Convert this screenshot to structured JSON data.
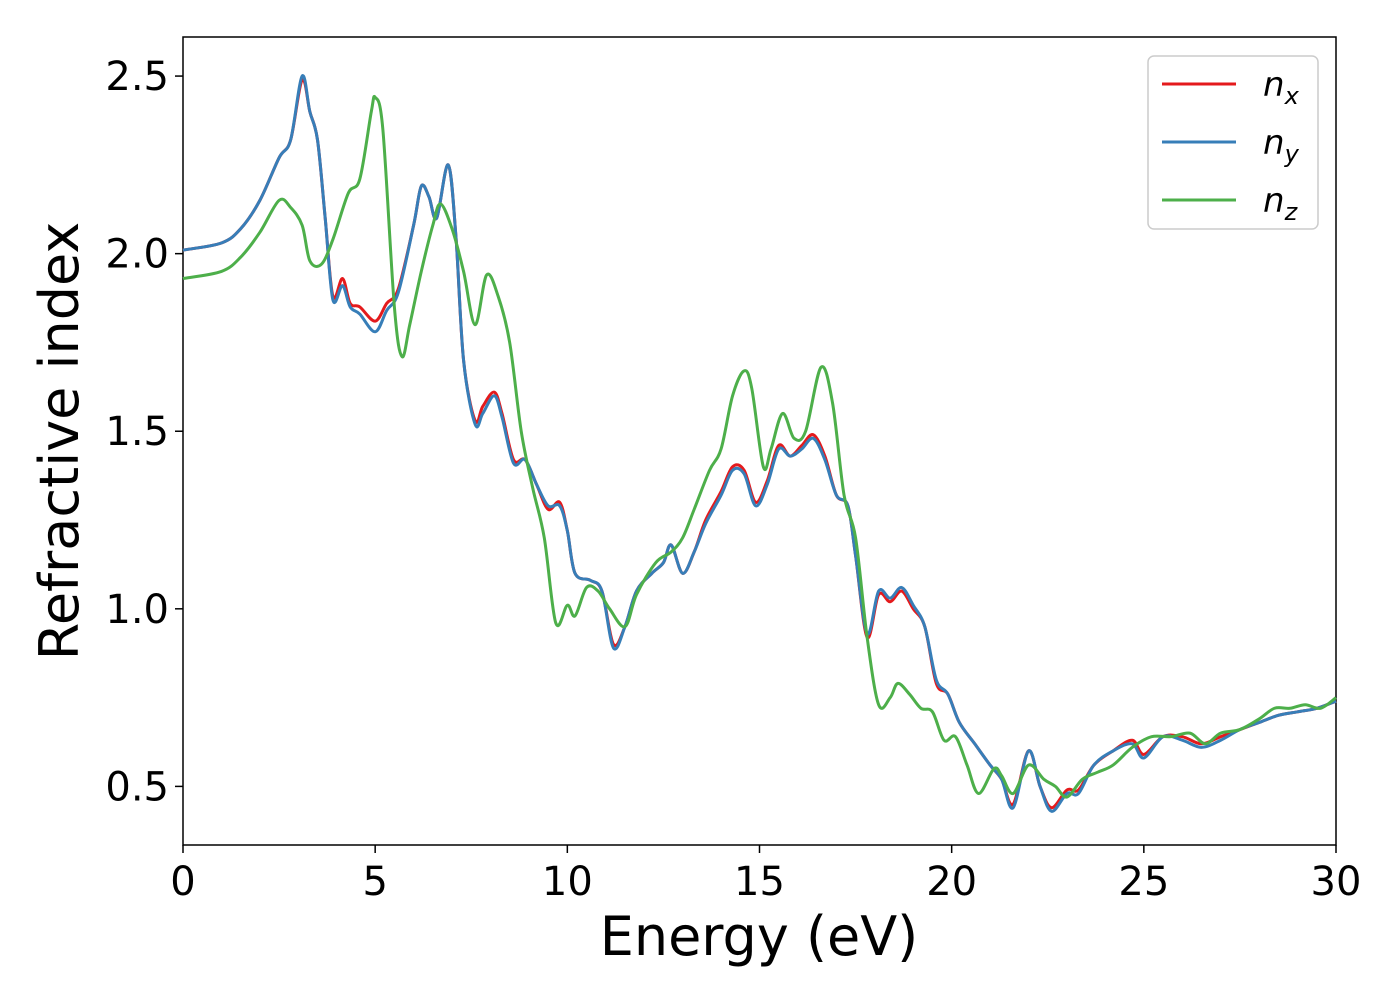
{
  "chart_data": {
    "type": "line",
    "title": "",
    "xlabel": "Energy (eV)",
    "ylabel": "Refractive index",
    "xlim": [
      0,
      30
    ],
    "ylim": [
      0.335,
      2.61
    ],
    "xticks": [
      0,
      5,
      10,
      15,
      20,
      25,
      30
    ],
    "xtick_labels": [
      "0",
      "5",
      "10",
      "15",
      "20",
      "25",
      "30"
    ],
    "yticks": [
      0.5,
      1.0,
      1.5,
      2.0,
      2.5
    ],
    "ytick_labels": [
      "0.5",
      "1.0",
      "1.5",
      "2.0",
      "2.5"
    ],
    "grid": false,
    "legend": "top-right",
    "series": [
      {
        "name": "n",
        "subscript": "x",
        "color": "#e41a1c",
        "points": [
          [
            0,
            2.01
          ],
          [
            1,
            2.03
          ],
          [
            1.5,
            2.07
          ],
          [
            2,
            2.15
          ],
          [
            2.5,
            2.27
          ],
          [
            2.8,
            2.32
          ],
          [
            3.1,
            2.49
          ],
          [
            3.3,
            2.4
          ],
          [
            3.5,
            2.32
          ],
          [
            3.7,
            2.1
          ],
          [
            3.9,
            1.88
          ],
          [
            4.15,
            1.93
          ],
          [
            4.35,
            1.86
          ],
          [
            4.6,
            1.85
          ],
          [
            5.0,
            1.81
          ],
          [
            5.3,
            1.86
          ],
          [
            5.6,
            1.9
          ],
          [
            6.0,
            2.08
          ],
          [
            6.2,
            2.19
          ],
          [
            6.4,
            2.16
          ],
          [
            6.6,
            2.1
          ],
          [
            6.9,
            2.25
          ],
          [
            7.1,
            2.05
          ],
          [
            7.3,
            1.7
          ],
          [
            7.6,
            1.53
          ],
          [
            7.8,
            1.57
          ],
          [
            8.1,
            1.61
          ],
          [
            8.3,
            1.55
          ],
          [
            8.6,
            1.42
          ],
          [
            8.9,
            1.42
          ],
          [
            9.2,
            1.35
          ],
          [
            9.5,
            1.28
          ],
          [
            9.8,
            1.3
          ],
          [
            10.0,
            1.22
          ],
          [
            10.2,
            1.1
          ],
          [
            10.6,
            1.08
          ],
          [
            10.9,
            1.05
          ],
          [
            11.2,
            0.9
          ],
          [
            11.5,
            0.95
          ],
          [
            11.8,
            1.05
          ],
          [
            12.2,
            1.1
          ],
          [
            12.5,
            1.13
          ],
          [
            12.7,
            1.18
          ],
          [
            13.0,
            1.1
          ],
          [
            13.3,
            1.16
          ],
          [
            13.6,
            1.25
          ],
          [
            14.0,
            1.33
          ],
          [
            14.3,
            1.4
          ],
          [
            14.6,
            1.39
          ],
          [
            14.9,
            1.3
          ],
          [
            15.2,
            1.36
          ],
          [
            15.5,
            1.46
          ],
          [
            15.8,
            1.43
          ],
          [
            16.1,
            1.46
          ],
          [
            16.4,
            1.49
          ],
          [
            16.7,
            1.43
          ],
          [
            17.0,
            1.32
          ],
          [
            17.3,
            1.29
          ],
          [
            17.5,
            1.15
          ],
          [
            17.8,
            0.92
          ],
          [
            18.1,
            1.04
          ],
          [
            18.4,
            1.02
          ],
          [
            18.7,
            1.05
          ],
          [
            19.0,
            1.0
          ],
          [
            19.3,
            0.95
          ],
          [
            19.6,
            0.79
          ],
          [
            19.9,
            0.76
          ],
          [
            20.2,
            0.68
          ],
          [
            20.6,
            0.62
          ],
          [
            21.0,
            0.56
          ],
          [
            21.3,
            0.52
          ],
          [
            21.6,
            0.45
          ],
          [
            22.0,
            0.6
          ],
          [
            22.3,
            0.5
          ],
          [
            22.6,
            0.44
          ],
          [
            23.0,
            0.49
          ],
          [
            23.3,
            0.49
          ],
          [
            23.7,
            0.56
          ],
          [
            24.2,
            0.6
          ],
          [
            24.7,
            0.63
          ],
          [
            25.0,
            0.59
          ],
          [
            25.5,
            0.64
          ],
          [
            26.0,
            0.64
          ],
          [
            26.5,
            0.62
          ],
          [
            27.0,
            0.64
          ],
          [
            27.5,
            0.66
          ],
          [
            28.0,
            0.68
          ],
          [
            28.5,
            0.7
          ],
          [
            29.0,
            0.71
          ],
          [
            29.5,
            0.72
          ],
          [
            30,
            0.74
          ]
        ]
      },
      {
        "name": "n",
        "subscript": "y",
        "color": "#377eb8",
        "points": [
          [
            0,
            2.01
          ],
          [
            1,
            2.03
          ],
          [
            1.5,
            2.07
          ],
          [
            2,
            2.15
          ],
          [
            2.5,
            2.27
          ],
          [
            2.8,
            2.32
          ],
          [
            3.1,
            2.5
          ],
          [
            3.3,
            2.4
          ],
          [
            3.5,
            2.32
          ],
          [
            3.7,
            2.1
          ],
          [
            3.9,
            1.87
          ],
          [
            4.15,
            1.91
          ],
          [
            4.35,
            1.85
          ],
          [
            4.6,
            1.83
          ],
          [
            5.0,
            1.78
          ],
          [
            5.3,
            1.84
          ],
          [
            5.6,
            1.89
          ],
          [
            6.0,
            2.08
          ],
          [
            6.2,
            2.19
          ],
          [
            6.4,
            2.16
          ],
          [
            6.6,
            2.1
          ],
          [
            6.9,
            2.25
          ],
          [
            7.1,
            2.05
          ],
          [
            7.3,
            1.7
          ],
          [
            7.6,
            1.52
          ],
          [
            7.8,
            1.55
          ],
          [
            8.1,
            1.6
          ],
          [
            8.3,
            1.54
          ],
          [
            8.6,
            1.41
          ],
          [
            8.9,
            1.42
          ],
          [
            9.2,
            1.35
          ],
          [
            9.5,
            1.29
          ],
          [
            9.8,
            1.29
          ],
          [
            10.0,
            1.22
          ],
          [
            10.2,
            1.1
          ],
          [
            10.6,
            1.08
          ],
          [
            10.9,
            1.05
          ],
          [
            11.2,
            0.89
          ],
          [
            11.5,
            0.95
          ],
          [
            11.8,
            1.05
          ],
          [
            12.2,
            1.1
          ],
          [
            12.5,
            1.13
          ],
          [
            12.7,
            1.18
          ],
          [
            13.0,
            1.1
          ],
          [
            13.3,
            1.16
          ],
          [
            13.6,
            1.24
          ],
          [
            14.0,
            1.32
          ],
          [
            14.3,
            1.39
          ],
          [
            14.6,
            1.38
          ],
          [
            14.9,
            1.29
          ],
          [
            15.2,
            1.35
          ],
          [
            15.5,
            1.45
          ],
          [
            15.8,
            1.43
          ],
          [
            16.1,
            1.45
          ],
          [
            16.4,
            1.48
          ],
          [
            16.7,
            1.42
          ],
          [
            17.0,
            1.32
          ],
          [
            17.3,
            1.29
          ],
          [
            17.5,
            1.15
          ],
          [
            17.8,
            0.93
          ],
          [
            18.1,
            1.05
          ],
          [
            18.4,
            1.03
          ],
          [
            18.7,
            1.06
          ],
          [
            19.0,
            1.01
          ],
          [
            19.3,
            0.95
          ],
          [
            19.6,
            0.8
          ],
          [
            19.9,
            0.76
          ],
          [
            20.2,
            0.68
          ],
          [
            20.6,
            0.62
          ],
          [
            21.0,
            0.56
          ],
          [
            21.3,
            0.52
          ],
          [
            21.6,
            0.44
          ],
          [
            22.0,
            0.6
          ],
          [
            22.3,
            0.5
          ],
          [
            22.6,
            0.43
          ],
          [
            23.0,
            0.48
          ],
          [
            23.3,
            0.48
          ],
          [
            23.7,
            0.56
          ],
          [
            24.2,
            0.6
          ],
          [
            24.7,
            0.62
          ],
          [
            25.0,
            0.58
          ],
          [
            25.5,
            0.64
          ],
          [
            26.0,
            0.63
          ],
          [
            26.5,
            0.61
          ],
          [
            27.0,
            0.63
          ],
          [
            27.5,
            0.66
          ],
          [
            28.0,
            0.68
          ],
          [
            28.5,
            0.7
          ],
          [
            29.0,
            0.71
          ],
          [
            29.5,
            0.72
          ],
          [
            30,
            0.74
          ]
        ]
      },
      {
        "name": "n",
        "subscript": "z",
        "color": "#4daf4a",
        "points": [
          [
            0,
            1.93
          ],
          [
            1,
            1.95
          ],
          [
            1.5,
            1.99
          ],
          [
            2,
            2.06
          ],
          [
            2.5,
            2.15
          ],
          [
            2.8,
            2.13
          ],
          [
            3.1,
            2.08
          ],
          [
            3.3,
            1.98
          ],
          [
            3.6,
            1.97
          ],
          [
            3.9,
            2.04
          ],
          [
            4.3,
            2.17
          ],
          [
            4.6,
            2.21
          ],
          [
            4.9,
            2.4
          ],
          [
            5.0,
            2.44
          ],
          [
            5.2,
            2.35
          ],
          [
            5.5,
            1.85
          ],
          [
            5.7,
            1.71
          ],
          [
            5.9,
            1.8
          ],
          [
            6.2,
            1.95
          ],
          [
            6.5,
            2.08
          ],
          [
            6.7,
            2.14
          ],
          [
            7.0,
            2.07
          ],
          [
            7.3,
            1.95
          ],
          [
            7.6,
            1.8
          ],
          [
            7.9,
            1.94
          ],
          [
            8.2,
            1.88
          ],
          [
            8.5,
            1.75
          ],
          [
            8.8,
            1.5
          ],
          [
            9.1,
            1.34
          ],
          [
            9.4,
            1.2
          ],
          [
            9.7,
            0.96
          ],
          [
            10.0,
            1.01
          ],
          [
            10.2,
            0.98
          ],
          [
            10.5,
            1.06
          ],
          [
            10.8,
            1.05
          ],
          [
            11.1,
            1.0
          ],
          [
            11.5,
            0.95
          ],
          [
            11.8,
            1.04
          ],
          [
            12.3,
            1.13
          ],
          [
            12.7,
            1.16
          ],
          [
            13.0,
            1.2
          ],
          [
            13.3,
            1.28
          ],
          [
            13.7,
            1.39
          ],
          [
            14.0,
            1.45
          ],
          [
            14.3,
            1.6
          ],
          [
            14.6,
            1.67
          ],
          [
            14.8,
            1.62
          ],
          [
            15.1,
            1.4
          ],
          [
            15.3,
            1.45
          ],
          [
            15.6,
            1.55
          ],
          [
            15.9,
            1.48
          ],
          [
            16.2,
            1.5
          ],
          [
            16.6,
            1.68
          ],
          [
            16.9,
            1.58
          ],
          [
            17.2,
            1.32
          ],
          [
            17.5,
            1.2
          ],
          [
            17.8,
            0.92
          ],
          [
            18.1,
            0.73
          ],
          [
            18.4,
            0.75
          ],
          [
            18.6,
            0.79
          ],
          [
            18.9,
            0.76
          ],
          [
            19.2,
            0.72
          ],
          [
            19.5,
            0.71
          ],
          [
            19.8,
            0.63
          ],
          [
            20.1,
            0.64
          ],
          [
            20.4,
            0.56
          ],
          [
            20.7,
            0.48
          ],
          [
            21.1,
            0.55
          ],
          [
            21.3,
            0.53
          ],
          [
            21.6,
            0.48
          ],
          [
            22.0,
            0.56
          ],
          [
            22.4,
            0.52
          ],
          [
            22.7,
            0.5
          ],
          [
            23.0,
            0.47
          ],
          [
            23.4,
            0.52
          ],
          [
            23.8,
            0.54
          ],
          [
            24.2,
            0.56
          ],
          [
            24.7,
            0.61
          ],
          [
            25.2,
            0.64
          ],
          [
            25.7,
            0.64
          ],
          [
            26.2,
            0.65
          ],
          [
            26.6,
            0.62
          ],
          [
            27.0,
            0.65
          ],
          [
            27.5,
            0.66
          ],
          [
            28.0,
            0.69
          ],
          [
            28.4,
            0.72
          ],
          [
            28.8,
            0.72
          ],
          [
            29.2,
            0.73
          ],
          [
            29.6,
            0.72
          ],
          [
            30,
            0.75
          ]
        ]
      }
    ]
  }
}
